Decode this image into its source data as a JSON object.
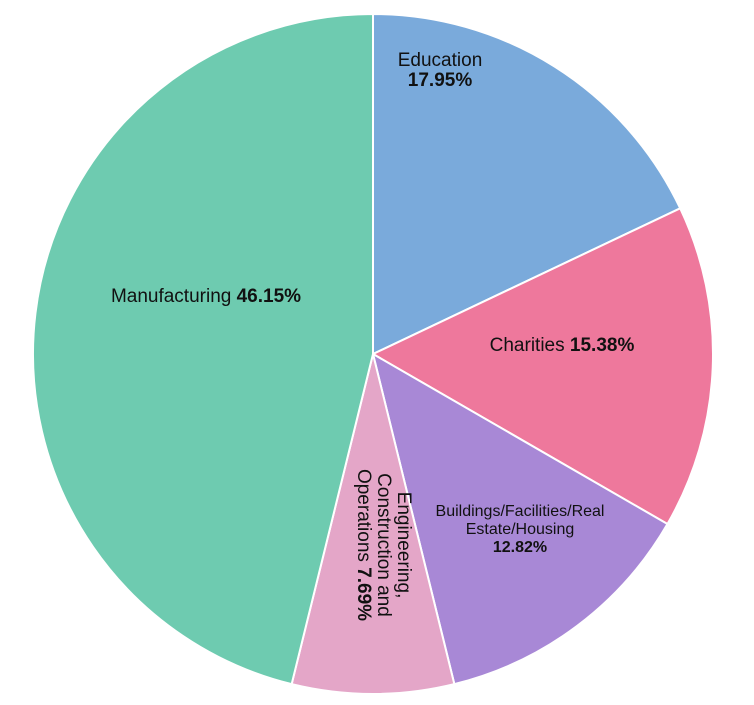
{
  "chart_data": {
    "type": "pie",
    "start_angle_deg": 0,
    "direction": "clockwise",
    "slice_border_color": "#ffffff",
    "slices": [
      {
        "label_lines": [
          "Education"
        ],
        "percent": 17.95,
        "percent_label": "17.95%",
        "color": "#7aaadb"
      },
      {
        "label_lines": [
          "Charities"
        ],
        "percent": 15.38,
        "percent_label": "15.38%",
        "color": "#ee789c"
      },
      {
        "label_lines": [
          "Buildings/Facilities/Real",
          "Estate/Housing"
        ],
        "percent": 12.82,
        "percent_label": "12.82%",
        "color": "#a888d6"
      },
      {
        "label_lines": [
          "Engineering,",
          "Construction and",
          "Operations"
        ],
        "percent": 7.69,
        "percent_label": "7.69%",
        "color": "#e4a6c8"
      },
      {
        "label_lines": [
          "Manufacturing"
        ],
        "percent": 46.15,
        "percent_label": "46.15%",
        "color": "#6ecbb0"
      }
    ]
  }
}
